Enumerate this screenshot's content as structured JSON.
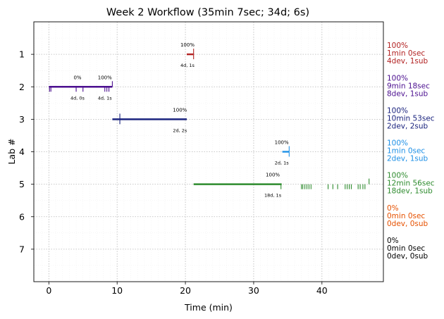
{
  "chart_data": {
    "type": "timeline",
    "title": "Week 2 Workflow (35min 7sec; 34d; 6s)",
    "xlabel": "Time (min)",
    "ylabel": "Lab #",
    "xlim": [
      -2.2,
      49
    ],
    "ylim": [
      8,
      0
    ],
    "xticks": [
      "0",
      "10",
      "20",
      "30",
      "40"
    ],
    "xtick_values": [
      0,
      10,
      20,
      30,
      40
    ],
    "yticks": [
      "1",
      "2",
      "3",
      "4",
      "5",
      "6",
      "7"
    ],
    "ytick_values": [
      1,
      2,
      3,
      4,
      5,
      6,
      7
    ],
    "grid": true,
    "series": [
      {
        "lab": 1,
        "color": "#b22222",
        "start": 20.2,
        "end": 21.2,
        "summary": [
          "100%",
          "1min 0sec",
          "4dev, 1sub"
        ],
        "bar_labels": [
          {
            "x": 20.3,
            "above": "100%",
            "below": "4d, 1s"
          }
        ],
        "ticks_down": [
          21.2
        ],
        "ticks_up": [
          21.2
        ]
      },
      {
        "lab": 2,
        "color": "#4b0f8f",
        "start": 0,
        "end": 9.3,
        "summary": [
          "100%",
          "9min 18sec",
          "8dev, 1sub"
        ],
        "bar_labels": [
          {
            "x": 4.2,
            "above": "0%",
            "below": "4d, 0s"
          },
          {
            "x": 8.2,
            "above": "100%",
            "below": "4d, 1s"
          }
        ],
        "ticks_down": [
          0.1,
          0.3,
          4.0,
          5.0,
          8.2,
          8.5,
          8.8
        ],
        "ticks_up": [
          9.3
        ]
      },
      {
        "lab": 3,
        "color": "#1a237e",
        "start": 9.3,
        "end": 20.2,
        "summary": [
          "100%",
          "10min 53sec",
          "2dev, 2sub"
        ],
        "bar_labels": [
          {
            "x": 19.2,
            "above": "100%",
            "below": "2d, 2s"
          }
        ],
        "ticks_down": [
          10.4
        ],
        "ticks_up": [
          10.4
        ]
      },
      {
        "lab": 4,
        "color": "#1e90e6",
        "start": 34.2,
        "end": 35.2,
        "summary": [
          "100%",
          "1min 0sec",
          "2dev, 1sub"
        ],
        "bar_labels": [
          {
            "x": 34.1,
            "above": "100%",
            "below": "2d, 1s"
          }
        ],
        "ticks_down": [
          35.2
        ],
        "ticks_up": [
          35.2
        ]
      },
      {
        "lab": 5,
        "color": "#2e8b2e",
        "start": 21.2,
        "end": 34.1,
        "summary": [
          "100%",
          "12min 56sec",
          "18dev, 1sub"
        ],
        "bar_labels": [
          {
            "x": 32.8,
            "above": "100%",
            "below": "18d, 1s"
          }
        ],
        "ticks_down": [
          34.0,
          37.0,
          37.2,
          37.5,
          37.8,
          38.1,
          38.4,
          40.9,
          41.6,
          42.3,
          43.4,
          43.7,
          44.0,
          44.3,
          45.3,
          45.6,
          46.0,
          46.3
        ],
        "ticks_up": [
          46.9
        ]
      },
      {
        "lab": 6,
        "color": "#e65100",
        "start": null,
        "end": null,
        "summary": [
          "0%",
          "0min 0sec",
          "0dev, 0sub"
        ],
        "bar_labels": [],
        "ticks_down": [],
        "ticks_up": []
      },
      {
        "lab": 7,
        "color": "#000000",
        "start": null,
        "end": null,
        "summary": [
          "0%",
          "0min 0sec",
          "0dev, 0sub"
        ],
        "bar_labels": [],
        "ticks_down": [],
        "ticks_up": []
      }
    ]
  }
}
